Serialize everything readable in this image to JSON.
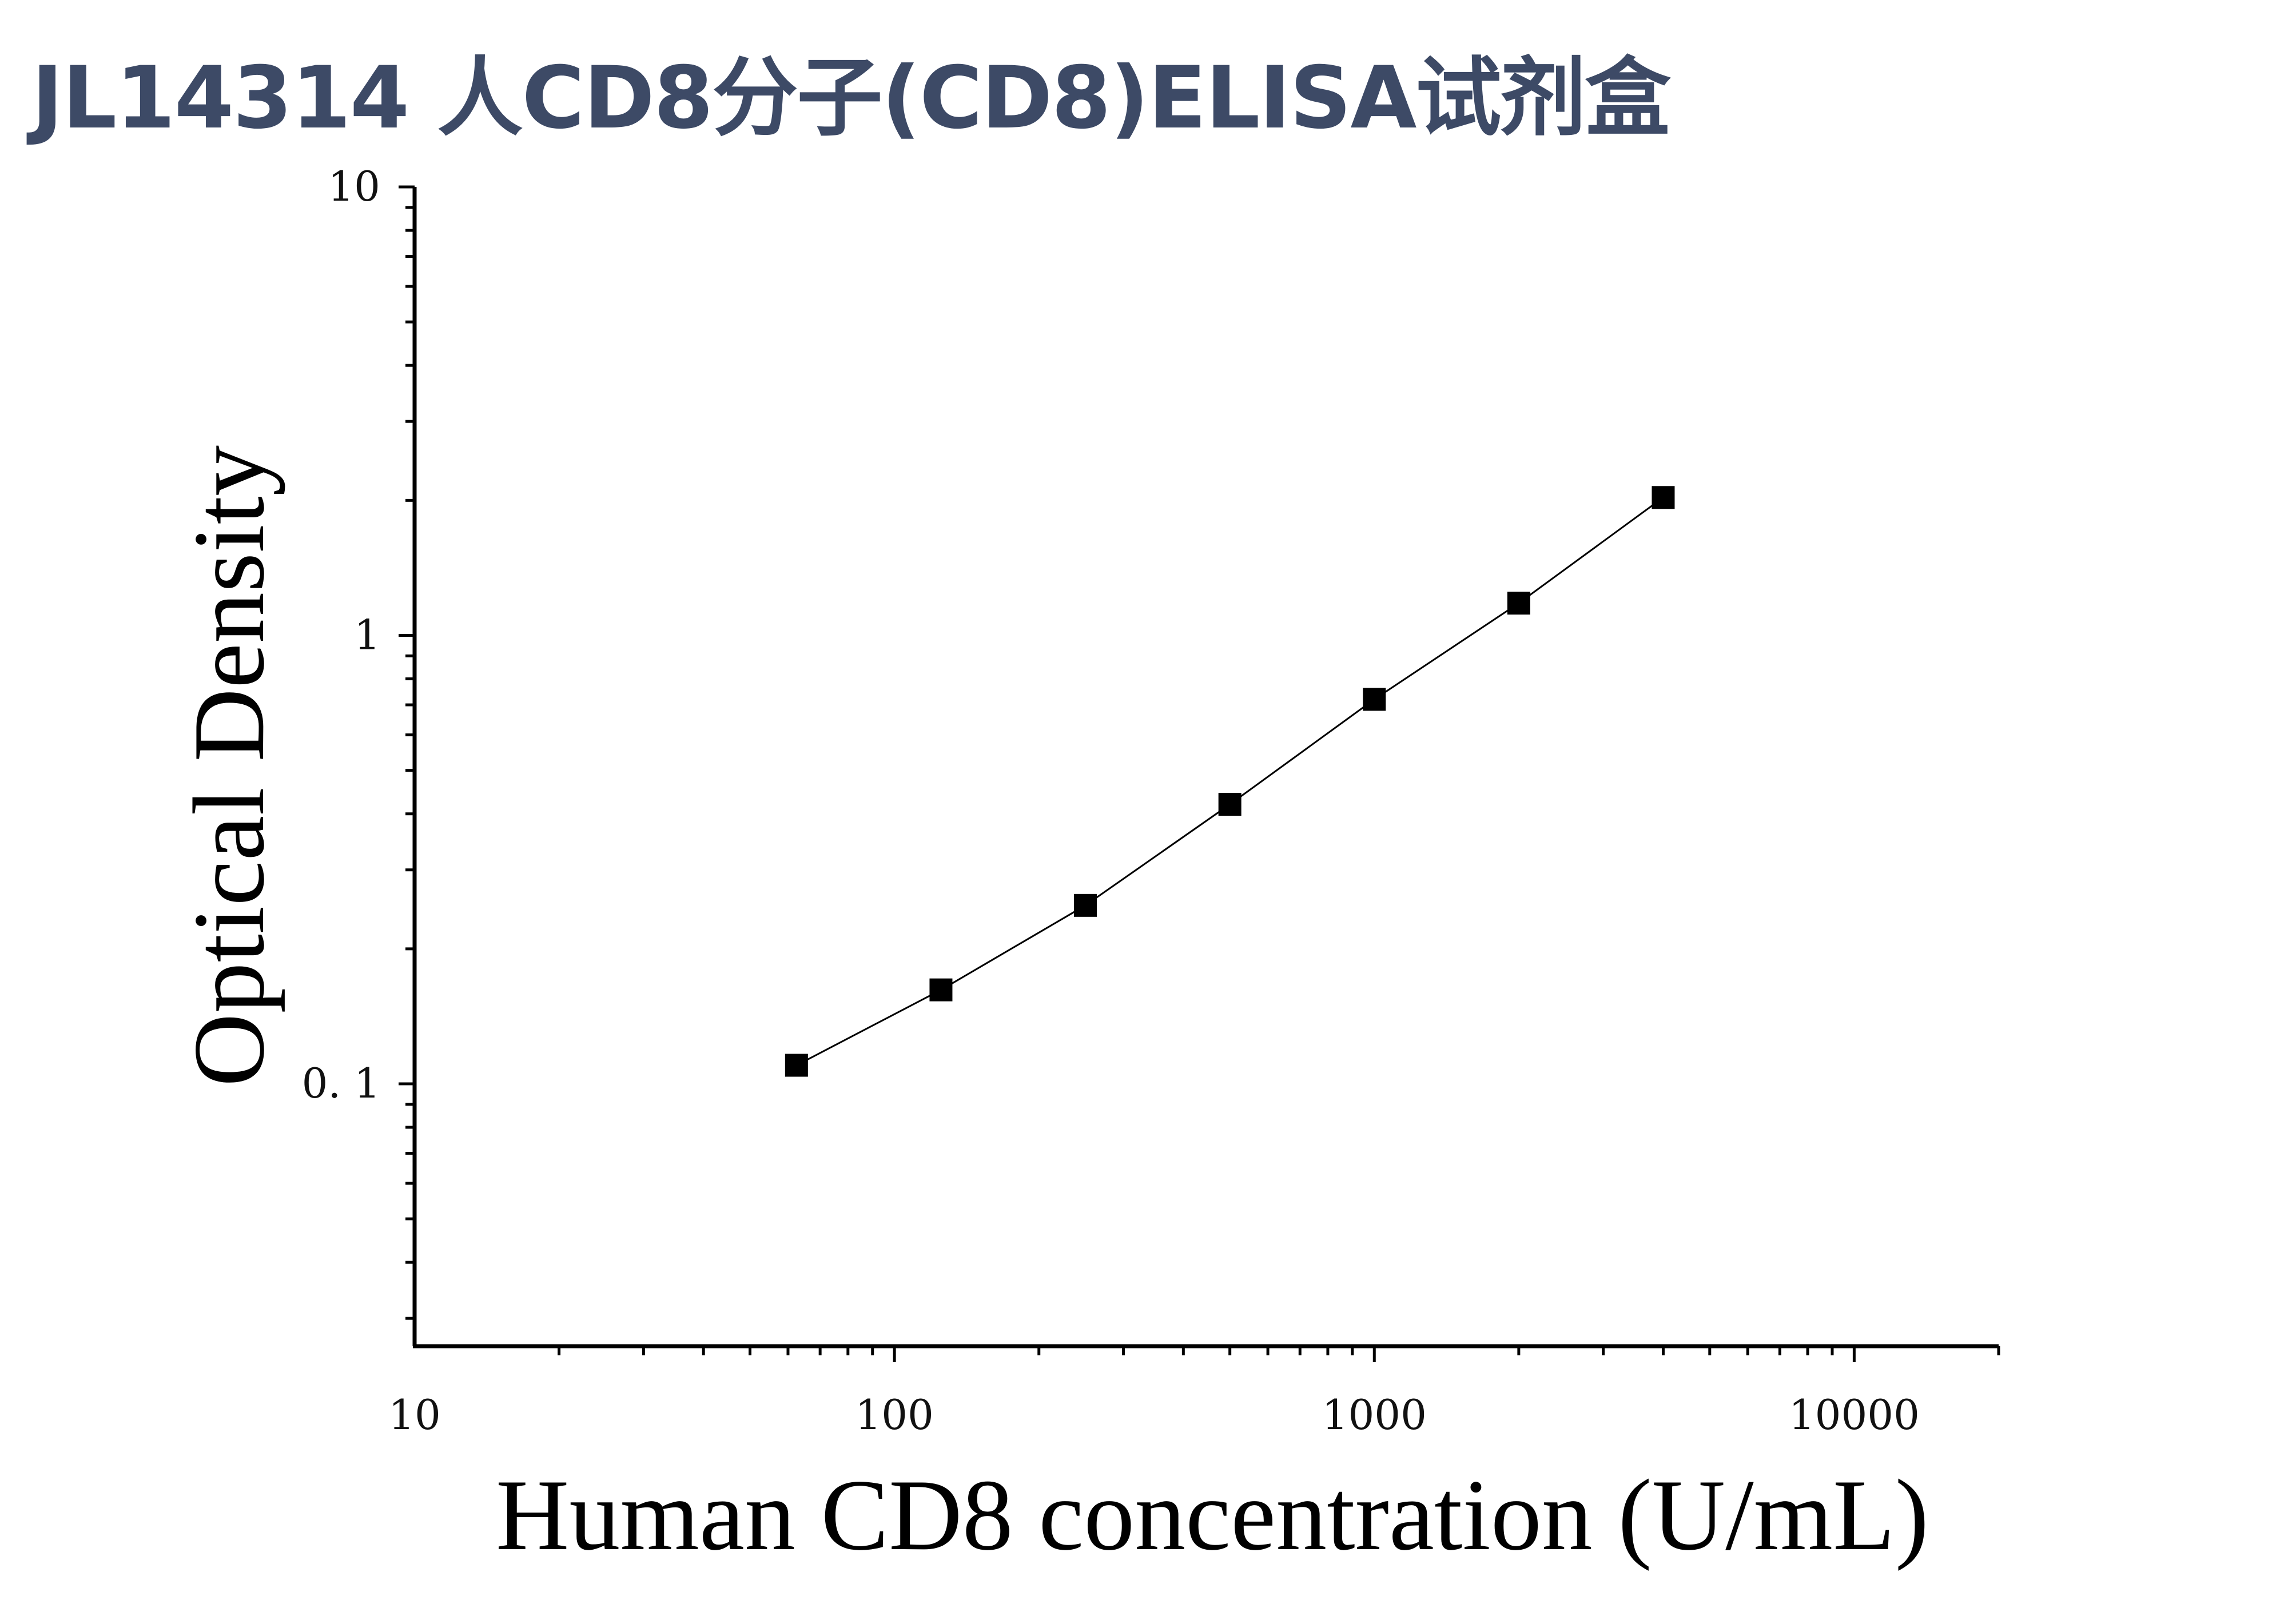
{
  "title": "JL14314 人CD8分子(CD8)ELISA试剂盒",
  "chart_data": {
    "type": "scatter",
    "title": "JL14314 人CD8分子(CD8)ELISA试剂盒",
    "xlabel": "Human CD8 concentration (U/mL)",
    "ylabel": "Optical Density",
    "xscale": "log",
    "yscale": "log",
    "xlim": [
      10,
      20000
    ],
    "ylim": [
      0.026,
      10
    ],
    "x_ticks": [
      {
        "value": 10,
        "label": "10"
      },
      {
        "value": 100,
        "label": "100"
      },
      {
        "value": 1000,
        "label": "1000"
      },
      {
        "value": 10000,
        "label": "10000"
      }
    ],
    "y_ticks": [
      {
        "value": 0.1,
        "label": "0. 1"
      },
      {
        "value": 1,
        "label": "1"
      },
      {
        "value": 10,
        "label": "10"
      }
    ],
    "grid": false,
    "series": [
      {
        "x": [
          62.5,
          125,
          250,
          500,
          1000,
          2000,
          4000
        ],
        "y": [
          0.11,
          0.162,
          0.25,
          0.42,
          0.72,
          1.18,
          2.03
        ],
        "marker": "square",
        "line": true,
        "color": "#000000"
      }
    ]
  }
}
